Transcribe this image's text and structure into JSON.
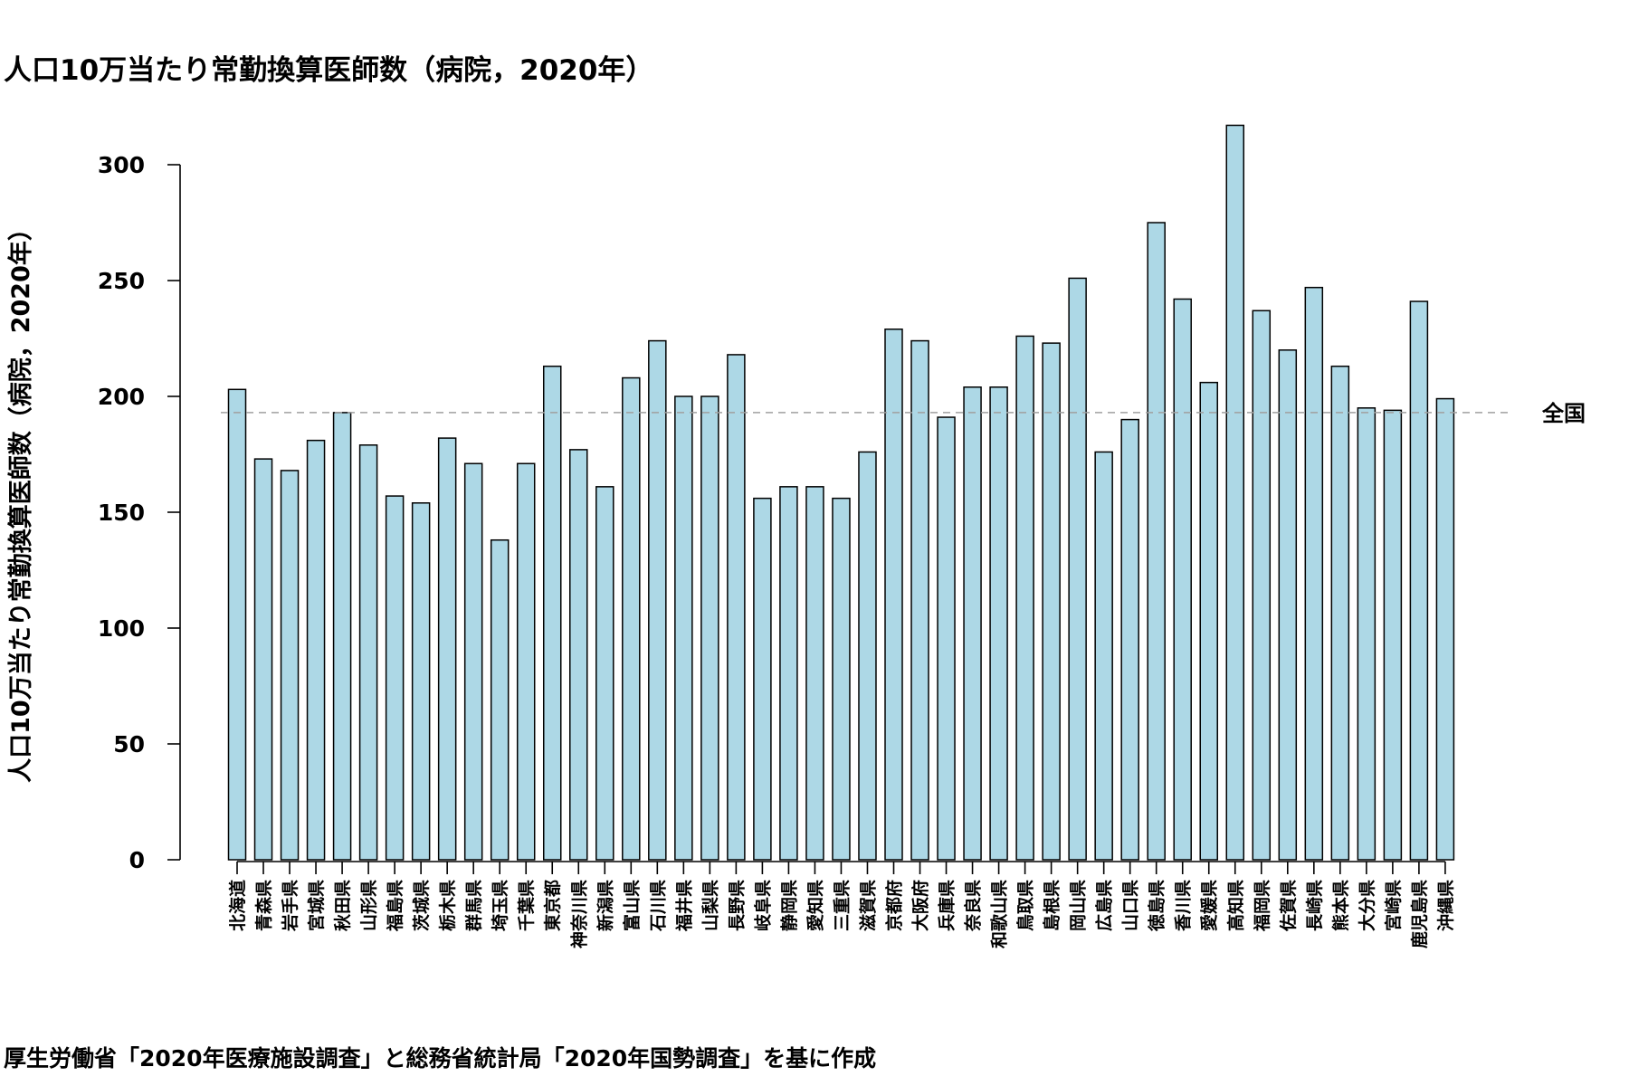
{
  "chart_data": {
    "type": "bar",
    "title": "人口10万当たり常勤換算医師数（病院，2020年）",
    "ylabel": "人口10万当たり常勤換算医師数（病院，2020年）",
    "xlabel": "",
    "ylim": [
      0,
      300
    ],
    "yticks": [
      0,
      50,
      100,
      150,
      200,
      250,
      300
    ],
    "grid": false,
    "bar_color": "#add8e6",
    "reference_line": {
      "label": "全国",
      "value": 193,
      "style": "dashed",
      "color": "#a0a0a0"
    },
    "categories": [
      "北海道",
      "青森県",
      "岩手県",
      "宮城県",
      "秋田県",
      "山形県",
      "福島県",
      "茨城県",
      "栃木県",
      "群馬県",
      "埼玉県",
      "千葉県",
      "東京都",
      "神奈川県",
      "新潟県",
      "富山県",
      "石川県",
      "福井県",
      "山梨県",
      "長野県",
      "岐阜県",
      "静岡県",
      "愛知県",
      "三重県",
      "滋賀県",
      "京都府",
      "大阪府",
      "兵庫県",
      "奈良県",
      "和歌山県",
      "鳥取県",
      "島根県",
      "岡山県",
      "広島県",
      "山口県",
      "徳島県",
      "香川県",
      "愛媛県",
      "高知県",
      "福岡県",
      "佐賀県",
      "長崎県",
      "熊本県",
      "大分県",
      "宮崎県",
      "鹿児島県",
      "沖縄県"
    ],
    "values": [
      203,
      173,
      168,
      181,
      193,
      179,
      157,
      154,
      182,
      171,
      138,
      171,
      213,
      177,
      161,
      208,
      224,
      200,
      200,
      218,
      156,
      161,
      161,
      156,
      176,
      229,
      224,
      191,
      204,
      204,
      226,
      223,
      251,
      176,
      190,
      275,
      242,
      206,
      317,
      237,
      220,
      247,
      213,
      195,
      194,
      241,
      199
    ]
  },
  "source_note": "厚生労働省「2020年医療施設調査」と総務省統計局「2020年国勢調査」を基に作成"
}
